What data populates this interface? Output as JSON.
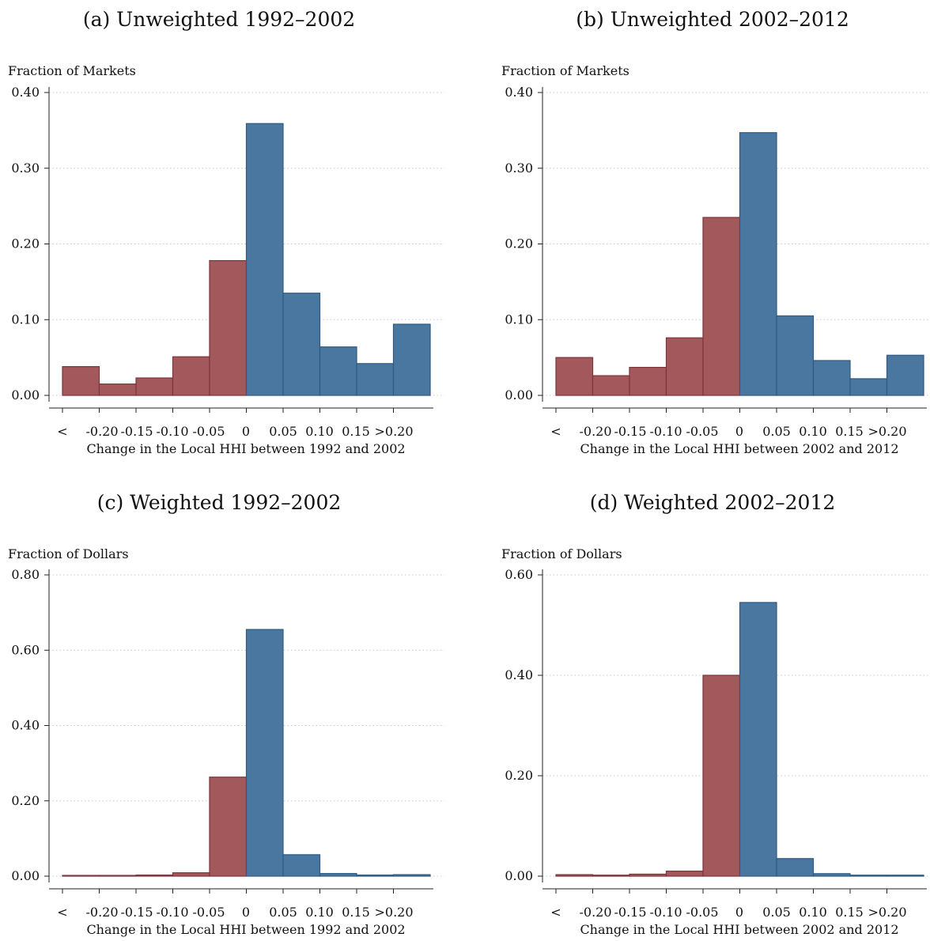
{
  "colors": {
    "negative_fill": "#a3585b",
    "negative_edge": "#7d3438",
    "positive_fill": "#4a77a0",
    "positive_edge": "#2e5a82"
  },
  "chart_data": [
    {
      "type": "bar",
      "title": "(a) Unweighted 1992–2002",
      "ylabel": "Fraction of Markets",
      "xlabel": "Change in the Local HHI between 1992 and 2002",
      "categories": [
        "<",
        "-0.20",
        "-0.15",
        "-0.10",
        "-0.05",
        "0",
        "0.05",
        "0.10",
        "0.15",
        ">0.20"
      ],
      "values": [
        0.038,
        0.015,
        0.023,
        0.051,
        0.178,
        0.359,
        0.135,
        0.064,
        0.042,
        0.094
      ],
      "ylim": [
        0,
        0.4
      ],
      "yticks": [
        "0.00",
        "0.10",
        "0.20",
        "0.30",
        "0.40"
      ],
      "grid": true
    },
    {
      "type": "bar",
      "title": "(b) Unweighted 2002–2012",
      "ylabel": "Fraction of Markets",
      "xlabel": "Change in the Local HHI between 2002 and 2012",
      "categories": [
        "<",
        "-0.20",
        "-0.15",
        "-0.10",
        "-0.05",
        "0",
        "0.05",
        "0.10",
        "0.15",
        ">0.20"
      ],
      "values": [
        0.05,
        0.026,
        0.037,
        0.076,
        0.235,
        0.347,
        0.105,
        0.046,
        0.022,
        0.053
      ],
      "ylim": [
        0,
        0.4
      ],
      "yticks": [
        "0.00",
        "0.10",
        "0.20",
        "0.30",
        "0.40"
      ],
      "grid": true
    },
    {
      "type": "bar",
      "title": "(c) Weighted 1992–2002",
      "ylabel": "Fraction of Dollars",
      "xlabel": "Change in the Local HHI between 1992 and 2002",
      "categories": [
        "<",
        "-0.20",
        "-0.15",
        "-0.10",
        "-0.05",
        "0",
        "0.05",
        "0.10",
        "0.15",
        ">0.20"
      ],
      "values": [
        0.002,
        0.002,
        0.003,
        0.009,
        0.263,
        0.655,
        0.057,
        0.007,
        0.003,
        0.004
      ],
      "ylim": [
        0,
        0.8
      ],
      "yticks": [
        "0.00",
        "0.20",
        "0.40",
        "0.60",
        "0.80"
      ],
      "grid": true
    },
    {
      "type": "bar",
      "title": "(d) Weighted 2002–2012",
      "ylabel": "Fraction of Dollars",
      "xlabel": "Change in the Local HHI between 2002 and 2012",
      "categories": [
        "<",
        "-0.20",
        "-0.15",
        "-0.10",
        "-0.05",
        "0",
        "0.05",
        "0.10",
        "0.15",
        ">0.20"
      ],
      "values": [
        0.003,
        0.002,
        0.004,
        0.01,
        0.4,
        0.545,
        0.035,
        0.005,
        0.002,
        0.002
      ],
      "ylim": [
        0,
        0.6
      ],
      "yticks": [
        "0.00",
        "0.20",
        "0.40",
        "0.60"
      ],
      "grid": true
    }
  ]
}
